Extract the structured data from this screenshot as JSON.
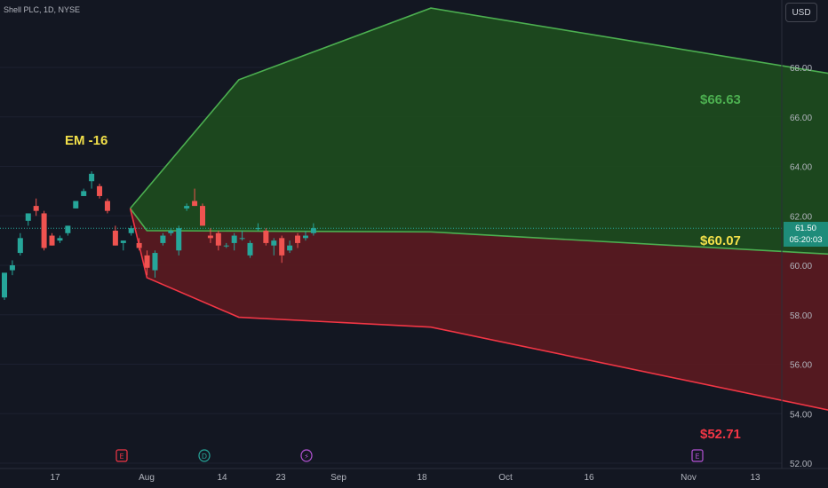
{
  "header": {
    "symbol_text": "Shell PLC, 1D, NYSE"
  },
  "currency_button": {
    "label": "USD"
  },
  "price_tag": {
    "price": "61.50",
    "countdown": "05:20:03"
  },
  "annotations": {
    "em_label": "EM -16",
    "upper_label": "$66.63",
    "mid_label": "$60.07",
    "lower_label": "$52.71"
  },
  "colors": {
    "background": "#131722",
    "up_candle": "#26a69a",
    "down_candle": "#ef5350",
    "upper_band_fill": "#1e4d1e",
    "upper_band_line": "#4caf50",
    "lower_band_fill": "#5c1a20",
    "lower_band_line": "#f23645",
    "em_label": "#f2e04a",
    "mid_label": "#f2e04a",
    "upper_label": "#4caf50",
    "lower_label": "#f23645",
    "price_tag": "#1e8c7a"
  },
  "chart_data": {
    "type": "candlestick",
    "y_axis": {
      "ticks": [
        52,
        54,
        56,
        58,
        60,
        62,
        64,
        66,
        68
      ],
      "tick_labels": [
        "52.00",
        "54.00",
        "56.00",
        "58.00",
        "60.00",
        "62.00",
        "64.00",
        "66.00",
        "68.00"
      ],
      "ylim": [
        52,
        70
      ],
      "side": "right"
    },
    "x_axis": {
      "tick_labels": [
        "17",
        "Aug",
        "14",
        "23",
        "Sep",
        "18",
        "Oct",
        "16",
        "Nov",
        "13"
      ]
    },
    "current_price": 61.5,
    "candles": [
      {
        "o": 58.7,
        "h": 59.6,
        "l": 58.6,
        "c": 59.7
      },
      {
        "o": 59.8,
        "h": 60.2,
        "l": 59.6,
        "c": 60.0
      },
      {
        "o": 60.5,
        "h": 61.3,
        "l": 60.4,
        "c": 61.1
      },
      {
        "o": 61.8,
        "h": 62.1,
        "l": 61.6,
        "c": 62.1
      },
      {
        "o": 62.4,
        "h": 62.7,
        "l": 62.0,
        "c": 62.2
      },
      {
        "o": 62.1,
        "h": 62.2,
        "l": 60.6,
        "c": 60.7
      },
      {
        "o": 61.2,
        "h": 61.3,
        "l": 60.8,
        "c": 60.8
      },
      {
        "o": 61.0,
        "h": 61.2,
        "l": 60.9,
        "c": 61.1
      },
      {
        "o": 61.3,
        "h": 61.6,
        "l": 61.2,
        "c": 61.6
      },
      {
        "o": 62.3,
        "h": 62.6,
        "l": 62.3,
        "c": 62.6
      },
      {
        "o": 62.8,
        "h": 63.1,
        "l": 62.8,
        "c": 63.0
      },
      {
        "o": 63.4,
        "h": 63.8,
        "l": 63.1,
        "c": 63.7
      },
      {
        "o": 63.2,
        "h": 63.3,
        "l": 62.7,
        "c": 62.8
      },
      {
        "o": 62.6,
        "h": 62.7,
        "l": 62.1,
        "c": 62.2
      },
      {
        "o": 61.4,
        "h": 61.6,
        "l": 60.8,
        "c": 60.8
      },
      {
        "o": 60.9,
        "h": 61.0,
        "l": 60.6,
        "c": 61.0
      },
      {
        "o": 61.3,
        "h": 61.6,
        "l": 61.2,
        "c": 61.5
      },
      {
        "o": 60.9,
        "h": 61.1,
        "l": 60.6,
        "c": 60.7
      },
      {
        "o": 60.4,
        "h": 60.6,
        "l": 59.6,
        "c": 59.9
      },
      {
        "o": 59.8,
        "h": 60.6,
        "l": 59.5,
        "c": 60.5
      },
      {
        "o": 60.9,
        "h": 61.3,
        "l": 60.8,
        "c": 61.2
      },
      {
        "o": 61.3,
        "h": 61.5,
        "l": 61.2,
        "c": 61.4
      },
      {
        "o": 60.6,
        "h": 61.6,
        "l": 60.4,
        "c": 61.5
      },
      {
        "o": 62.3,
        "h": 62.5,
        "l": 62.2,
        "c": 62.4
      },
      {
        "o": 62.6,
        "h": 63.1,
        "l": 62.4,
        "c": 62.4
      },
      {
        "o": 62.4,
        "h": 62.5,
        "l": 61.6,
        "c": 61.6
      },
      {
        "o": 61.2,
        "h": 61.5,
        "l": 60.9,
        "c": 61.1
      },
      {
        "o": 61.3,
        "h": 61.4,
        "l": 60.6,
        "c": 60.8
      },
      {
        "o": 60.8,
        "h": 60.9,
        "l": 60.7,
        "c": 60.8
      },
      {
        "o": 60.9,
        "h": 61.3,
        "l": 60.6,
        "c": 61.2
      },
      {
        "o": 61.1,
        "h": 61.4,
        "l": 61.0,
        "c": 61.1
      },
      {
        "o": 60.4,
        "h": 61.0,
        "l": 60.3,
        "c": 60.9
      },
      {
        "o": 61.5,
        "h": 61.7,
        "l": 61.4,
        "c": 61.5
      },
      {
        "o": 61.4,
        "h": 61.5,
        "l": 60.8,
        "c": 60.9
      },
      {
        "o": 60.8,
        "h": 61.1,
        "l": 60.4,
        "c": 61.0
      },
      {
        "o": 61.1,
        "h": 61.2,
        "l": 60.1,
        "c": 60.4
      },
      {
        "o": 60.6,
        "h": 61.0,
        "l": 60.5,
        "c": 60.8
      },
      {
        "o": 61.2,
        "h": 61.3,
        "l": 60.7,
        "c": 60.9
      },
      {
        "o": 61.1,
        "h": 61.4,
        "l": 61.0,
        "c": 61.2
      },
      {
        "o": 61.3,
        "h": 61.7,
        "l": 61.2,
        "c": 61.5
      }
    ],
    "expected_move": {
      "upper": [
        {
          "t": "Jul 26",
          "price": 62.3
        },
        {
          "t": "Aug 8",
          "price": 67.5
        },
        {
          "t": "Aug 31",
          "price": 70.4
        },
        {
          "t": "Nov 7",
          "price": 66.63
        }
      ],
      "mid": [
        {
          "t": "Jul 26",
          "price": 62.3
        },
        {
          "t": "Jul 28",
          "price": 61.4
        },
        {
          "t": "Aug 31",
          "price": 61.35
        },
        {
          "t": "Nov 7",
          "price": 60.07
        }
      ],
      "lower": [
        {
          "t": "Jul 26",
          "price": 62.3
        },
        {
          "t": "Jul 28",
          "price": 59.5
        },
        {
          "t": "Aug 8",
          "price": 57.9
        },
        {
          "t": "Aug 31",
          "price": 57.5
        },
        {
          "t": "Nov 7",
          "price": 52.71
        }
      ]
    },
    "event_markers": [
      {
        "label": "E",
        "color": "#f23645"
      },
      {
        "label": "D",
        "color": "#26a69a"
      },
      {
        "label": "⚡",
        "color": "#b553d6"
      },
      {
        "label": "E",
        "color": "#b553d6"
      }
    ]
  }
}
